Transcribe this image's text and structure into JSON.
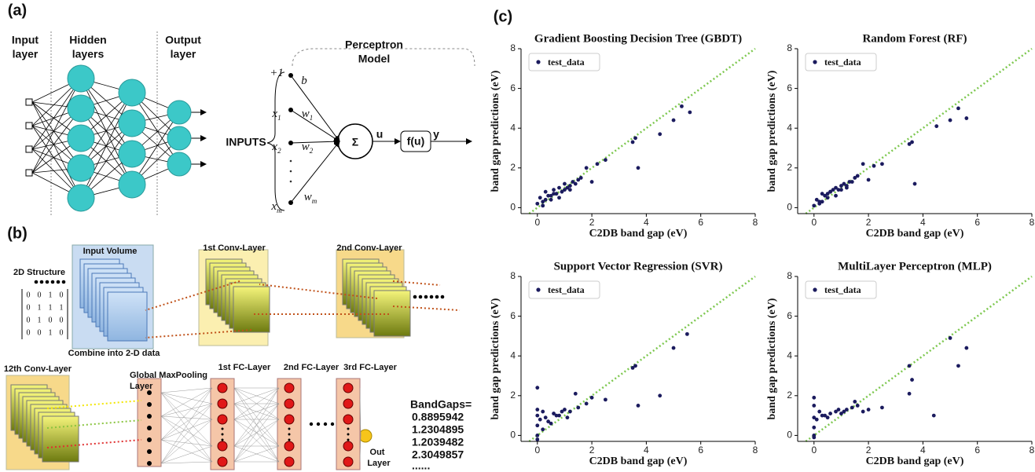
{
  "panel_a": {
    "label": "(a)",
    "input_layer": [
      "Input",
      "layer"
    ],
    "hidden_layers": [
      "Hidden",
      "layers"
    ],
    "output_layer": [
      "Output",
      "layer"
    ],
    "perceptron": {
      "title": [
        "Perceptron",
        "Model"
      ],
      "inputs_label": "INPUTS",
      "inputs": [
        {
          "base": "+1"
        },
        {
          "base": "x",
          "sub": "1"
        },
        {
          "base": "x",
          "sub": "2"
        },
        {
          "base": "x",
          "sub": "m"
        }
      ],
      "weights": [
        {
          "base": "b"
        },
        {
          "base": "w",
          "sub": "1"
        },
        {
          "base": "w",
          "sub": "2"
        },
        {
          "base": "w",
          "sub": "m"
        }
      ],
      "sum": "Σ",
      "u": "u",
      "activation": "f(u)",
      "output": "y"
    }
  },
  "panel_b": {
    "label": "(b)",
    "input_volume": "Input Volume",
    "structure": "2D Structure",
    "matrix": [
      [
        0,
        0,
        1,
        0
      ],
      [
        0,
        1,
        1,
        1
      ],
      [
        0,
        1,
        0,
        0
      ],
      [
        0,
        0,
        1,
        0
      ]
    ],
    "combine": "Combine into 2-D data",
    "conv1": "1st Conv-Layer",
    "conv2": "2nd Conv-Layer",
    "conv12": "12th Conv-Layer",
    "pooling": [
      "Global MaxPooling",
      "Layer"
    ],
    "fc": [
      "1st FC-Layer",
      "2nd FC-Layer",
      "3rd FC-Layer"
    ],
    "out": [
      "Out",
      "Layer"
    ],
    "bandgaps_label": "BandGaps=",
    "bandgaps": [
      0.8895942,
      1.2304895,
      1.2039482,
      2.3049857
    ],
    "ellipsis": "......"
  },
  "panel_c": {
    "label": "(c)"
  },
  "chart_data": [
    {
      "type": "scatter",
      "title": "Gradient Boosting Decision Tree (GBDT)",
      "xlabel": "C2DB  band  gap  (eV)",
      "ylabel": "band gap predictions (eV)",
      "xlim": [
        -0.6,
        8
      ],
      "ylim": [
        -0.3,
        8
      ],
      "xticks": [
        0,
        2,
        4,
        6,
        8
      ],
      "yticks": [
        0,
        2,
        4,
        6,
        8
      ],
      "legend": "upper left",
      "series": [
        {
          "name": "test_data",
          "color": "#1b1b5e",
          "x": [
            0,
            0.1,
            0.2,
            0.3,
            0.4,
            0.5,
            0.6,
            0.7,
            0.8,
            0.9,
            1.0,
            1.1,
            1.2,
            1.3,
            1.5,
            0.2,
            0.5,
            0.8,
            1.0,
            1.6,
            1.8,
            2.0,
            2.2,
            2.5,
            3.5,
            3.6,
            3.7,
            4.5,
            5.0,
            5.3,
            5.6,
            0.3,
            0.6,
            1.2,
            1.4
          ],
          "values": [
            0.2,
            0.5,
            0.3,
            0.8,
            0.6,
            0.4,
            0.9,
            0.7,
            1.0,
            0.8,
            1.2,
            1.0,
            1.1,
            1.3,
            1.4,
            0.1,
            0.6,
            0.5,
            0.9,
            1.5,
            2.0,
            1.3,
            2.2,
            2.4,
            3.3,
            3.5,
            2.0,
            3.7,
            4.4,
            5.1,
            4.8,
            0.4,
            0.7,
            0.9,
            1.2
          ]
        }
      ]
    },
    {
      "type": "scatter",
      "title": "Random   Forest   (RF)",
      "xlabel": "C2DB  band  gap  (eV)",
      "ylabel": "band gap predictions (eV)",
      "xlim": [
        -0.6,
        8
      ],
      "ylim": [
        -0.3,
        8
      ],
      "xticks": [
        0,
        2,
        4,
        6,
        8
      ],
      "yticks": [
        0,
        2,
        4,
        6,
        8
      ],
      "legend": "upper left",
      "series": [
        {
          "name": "test_data",
          "color": "#1b1b5e",
          "x": [
            0,
            0.1,
            0.2,
            0.3,
            0.4,
            0.5,
            0.6,
            0.7,
            0.8,
            0.9,
            1.0,
            1.1,
            1.2,
            1.3,
            1.5,
            0.2,
            0.5,
            0.8,
            1.0,
            1.6,
            1.8,
            2.0,
            2.2,
            2.5,
            3.5,
            3.6,
            3.7,
            4.5,
            5.0,
            5.3,
            5.6,
            0.3,
            0.6,
            1.2,
            1.4
          ],
          "values": [
            0.1,
            0.4,
            0.3,
            0.7,
            0.6,
            0.5,
            0.8,
            0.9,
            1.0,
            0.9,
            1.1,
            1.2,
            1.0,
            1.3,
            1.5,
            0.2,
            0.7,
            0.6,
            0.9,
            1.6,
            2.2,
            1.4,
            2.1,
            2.2,
            3.2,
            3.3,
            1.2,
            4.1,
            4.4,
            5.0,
            4.5,
            0.3,
            0.8,
            1.1,
            1.3
          ]
        }
      ]
    },
    {
      "type": "scatter",
      "title": "Support Vector Regression (SVR)",
      "xlabel": "C2DB  band  gap  (eV)",
      "ylabel": "band gap predictions (eV)",
      "xlim": [
        -0.6,
        8
      ],
      "ylim": [
        -0.3,
        8
      ],
      "xticks": [
        0,
        2,
        4,
        6,
        8
      ],
      "yticks": [
        0,
        2,
        4,
        6,
        8
      ],
      "legend": "upper left",
      "series": [
        {
          "name": "test_data",
          "color": "#1b1b5e",
          "x": [
            0,
            0,
            0,
            0,
            0,
            0,
            0.1,
            0.2,
            0.3,
            0.5,
            0.6,
            0.8,
            1.0,
            1.2,
            1.4,
            1.5,
            1.8,
            2.0,
            2.5,
            3.5,
            3.6,
            3.7,
            4.5,
            5.0,
            5.5,
            0.4,
            0.7,
            0.9,
            1.1,
            0.2
          ],
          "values": [
            0,
            0.5,
            1.0,
            1.3,
            2.4,
            -0.2,
            0.8,
            0.3,
            0.9,
            0.6,
            1.1,
            1.0,
            1.3,
            1.2,
            2.1,
            1.4,
            1.6,
            1.9,
            1.8,
            3.4,
            3.5,
            1.5,
            2.0,
            4.4,
            5.1,
            0.7,
            1.0,
            1.2,
            0.9,
            1.2
          ]
        }
      ]
    },
    {
      "type": "scatter",
      "title": "MultiLayer   Perceptron   (MLP)",
      "xlabel": "C2DB  band  gap  (eV)",
      "ylabel": "band gap predictions (eV)",
      "xlim": [
        -0.6,
        8
      ],
      "ylim": [
        -0.3,
        8
      ],
      "xticks": [
        0,
        2,
        4,
        6,
        8
      ],
      "yticks": [
        0,
        2,
        4,
        6,
        8
      ],
      "legend": "upper left",
      "series": [
        {
          "name": "test_data",
          "color": "#1b1b5e",
          "x": [
            0,
            0,
            0,
            0,
            0,
            0,
            0.1,
            0.2,
            0.4,
            0.6,
            0.8,
            1.0,
            1.2,
            1.4,
            1.6,
            1.8,
            2.0,
            2.5,
            3.5,
            3.5,
            3.6,
            4.4,
            5.0,
            5.3,
            5.6,
            0.3,
            0.5,
            0.9,
            1.1,
            1.5
          ],
          "values": [
            0,
            0.4,
            0.9,
            1.5,
            1.9,
            -0.1,
            0.8,
            1.2,
            1.0,
            1.1,
            1.2,
            1.1,
            1.3,
            1.4,
            1.5,
            1.2,
            1.3,
            1.4,
            3.5,
            2.1,
            2.8,
            1.0,
            4.9,
            3.5,
            4.4,
            1.0,
            0.9,
            1.3,
            1.2,
            1.7
          ]
        }
      ]
    }
  ]
}
